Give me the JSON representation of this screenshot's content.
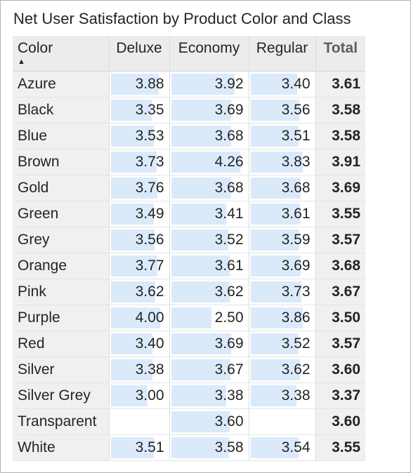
{
  "title": "Net User Satisfaction by Product Color and Class",
  "colors": {
    "bar": "#dbeafb",
    "header_bg": "#ececec",
    "row_bg": "#f0f0f0"
  },
  "chart_data": {
    "type": "table",
    "title": "Net User Satisfaction by Product Color and Class",
    "row_header": "Color",
    "sorted_column": "Color",
    "sort_direction": "ascending",
    "columns": [
      "Deluxe",
      "Economy",
      "Regular"
    ],
    "total_label": "Total",
    "data_bars": true,
    "bar_scale_max": 4.26,
    "rows": [
      {
        "label": "Azure",
        "values": [
          "3.88",
          "3.92",
          "3.40"
        ],
        "total": "3.61"
      },
      {
        "label": "Black",
        "values": [
          "3.35",
          "3.69",
          "3.56"
        ],
        "total": "3.58"
      },
      {
        "label": "Blue",
        "values": [
          "3.53",
          "3.68",
          "3.51"
        ],
        "total": "3.58"
      },
      {
        "label": "Brown",
        "values": [
          "3.73",
          "4.26",
          "3.83"
        ],
        "total": "3.91"
      },
      {
        "label": "Gold",
        "values": [
          "3.76",
          "3.68",
          "3.68"
        ],
        "total": "3.69"
      },
      {
        "label": "Green",
        "values": [
          "3.49",
          "3.41",
          "3.61"
        ],
        "total": "3.55"
      },
      {
        "label": "Grey",
        "values": [
          "3.56",
          "3.52",
          "3.59"
        ],
        "total": "3.57"
      },
      {
        "label": "Orange",
        "values": [
          "3.77",
          "3.61",
          "3.69"
        ],
        "total": "3.68"
      },
      {
        "label": "Pink",
        "values": [
          "3.62",
          "3.62",
          "3.73"
        ],
        "total": "3.67"
      },
      {
        "label": "Purple",
        "values": [
          "4.00",
          "2.50",
          "3.86"
        ],
        "total": "3.50"
      },
      {
        "label": "Red",
        "values": [
          "3.40",
          "3.69",
          "3.52"
        ],
        "total": "3.57"
      },
      {
        "label": "Silver",
        "values": [
          "3.38",
          "3.67",
          "3.62"
        ],
        "total": "3.60"
      },
      {
        "label": "Silver Grey",
        "values": [
          "3.00",
          "3.38",
          "3.38"
        ],
        "total": "3.37"
      },
      {
        "label": "Transparent",
        "values": [
          "",
          "3.60",
          ""
        ],
        "total": "3.60"
      },
      {
        "label": "White",
        "values": [
          "3.51",
          "3.58",
          "3.54"
        ],
        "total": "3.55"
      }
    ]
  }
}
